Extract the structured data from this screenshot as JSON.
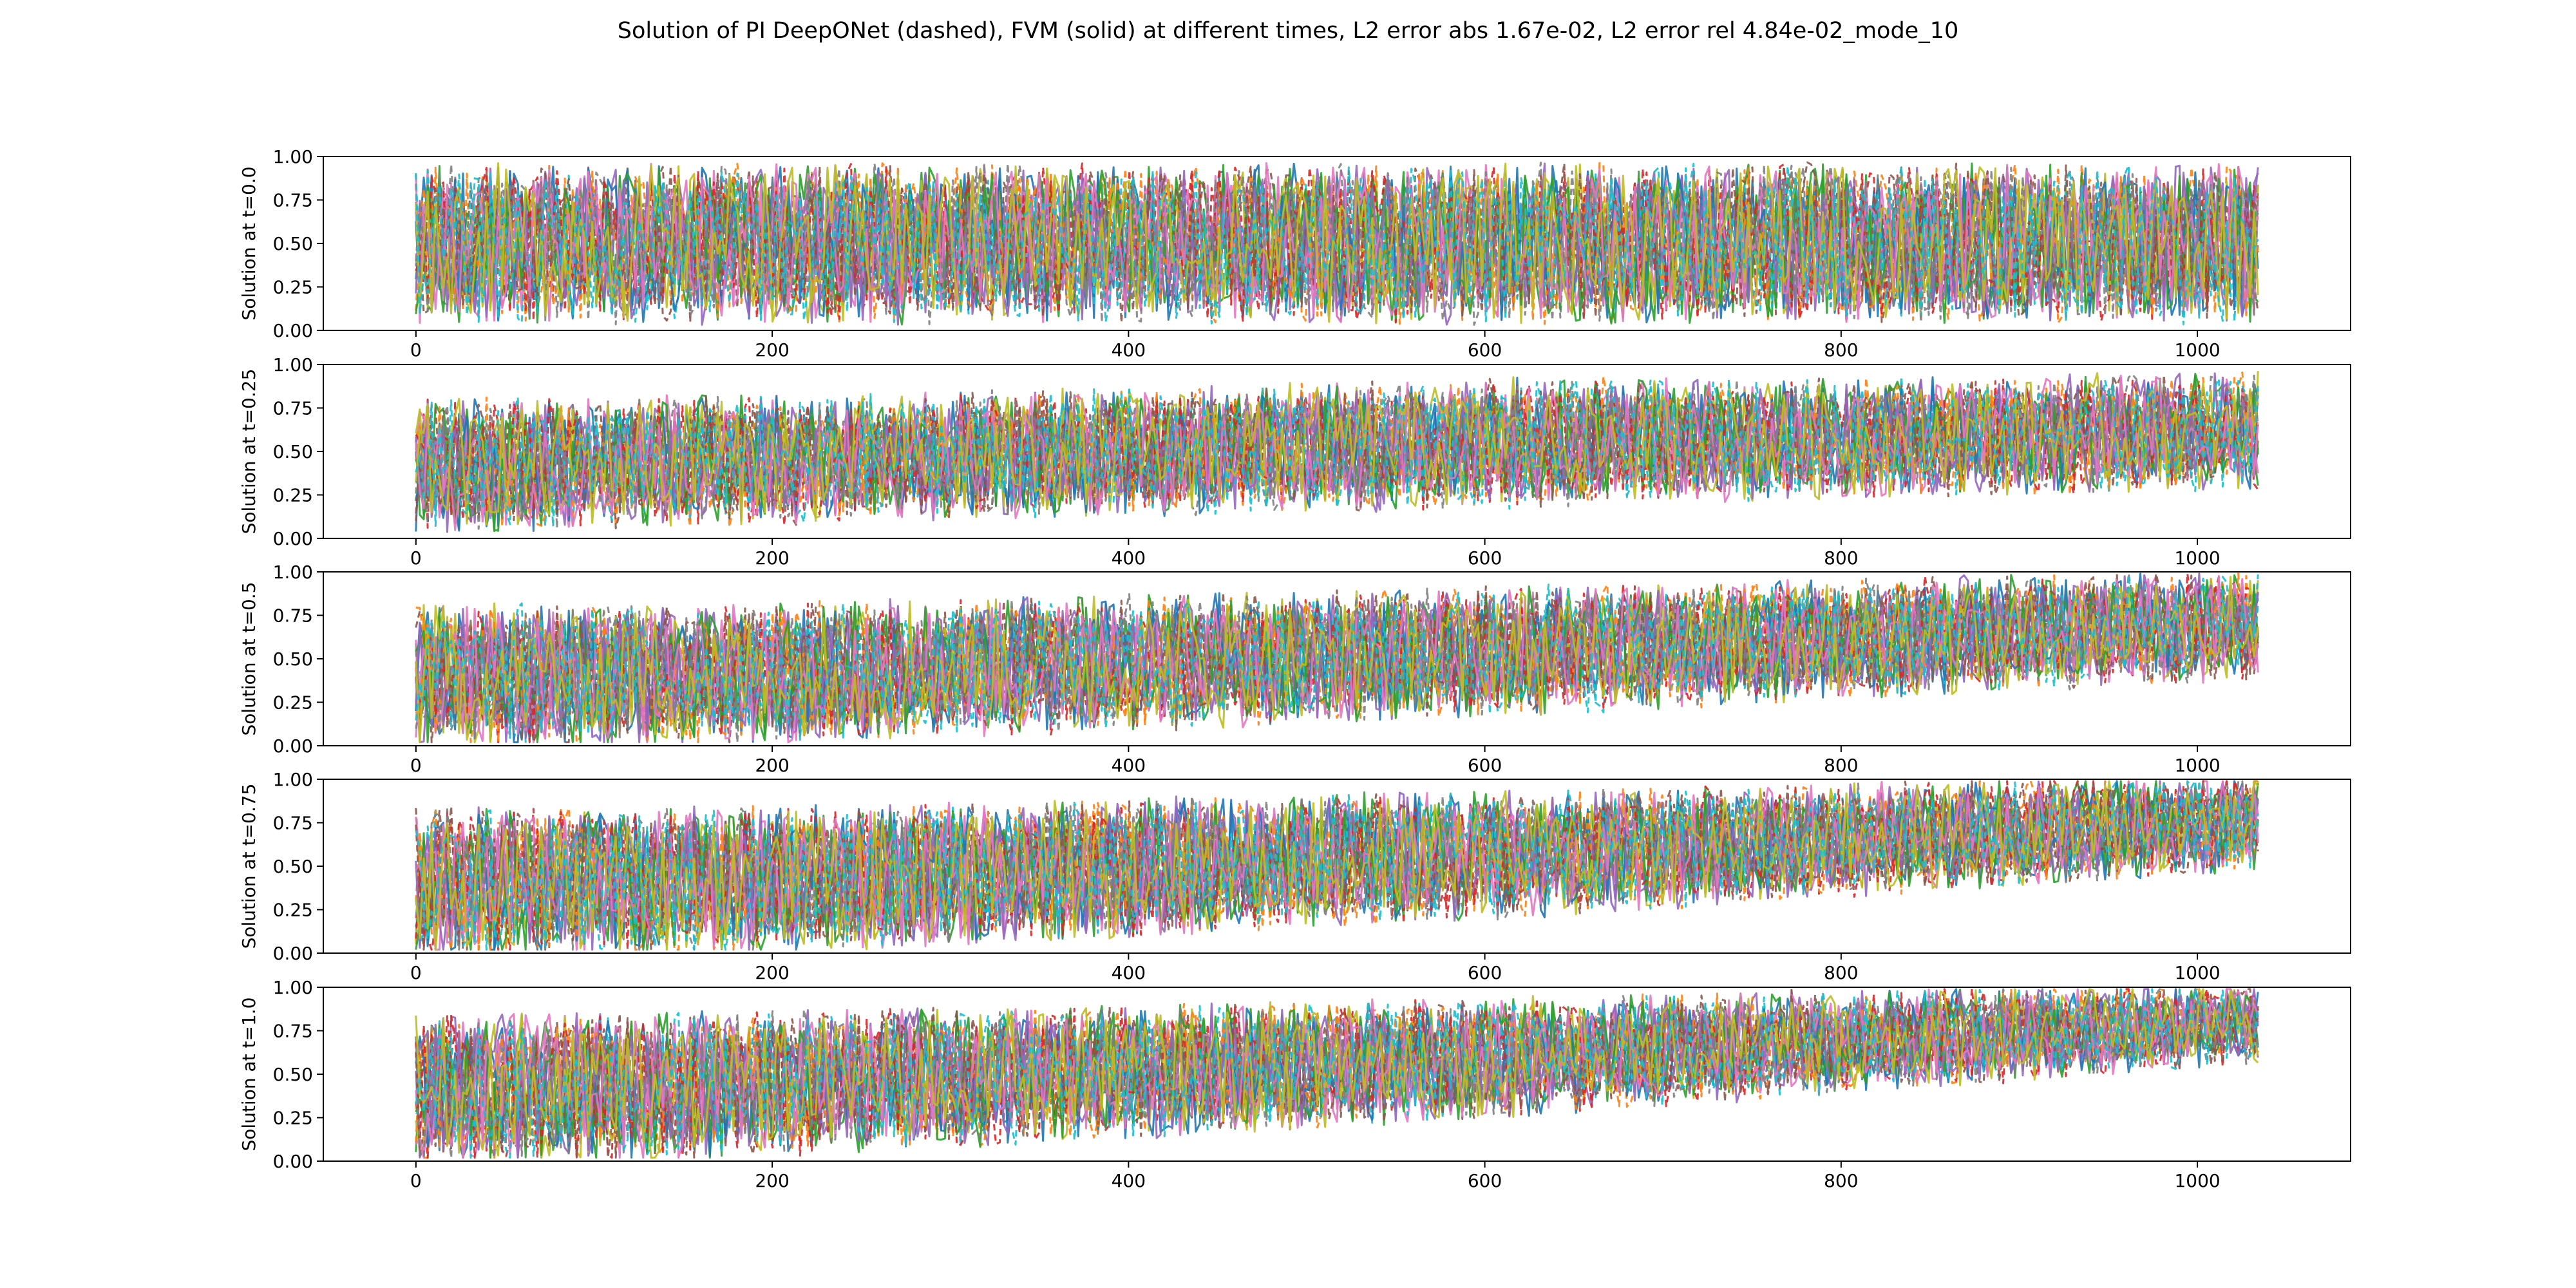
{
  "figure": {
    "title": "Solution of PI DeepONet (dashed), FVM (solid) at different times, L2 error abs 1.67e-02, L2 error rel 4.84e-02_mode_10"
  },
  "colors": {
    "palette": [
      "#1f77b4",
      "#ff7f0e",
      "#2ca02c",
      "#d62728",
      "#9467bd",
      "#8c564b",
      "#e377c2",
      "#7f7f7f",
      "#bcbd22",
      "#17becf"
    ],
    "axes_edge": "#000000",
    "background": "#ffffff"
  },
  "chart_data": [
    {
      "type": "line",
      "ylabel": "Solution at t=0.0",
      "xlim": [
        -52,
        1086
      ],
      "ylim": [
        0.0,
        1.0
      ],
      "xticks": [
        0,
        200,
        400,
        600,
        800,
        1000
      ],
      "xtick_labels": [
        "0",
        "200",
        "400",
        "600",
        "800",
        "1000"
      ],
      "yticks": [
        0.0,
        0.25,
        0.5,
        0.75,
        1.0
      ],
      "ytick_labels": [
        "0.00",
        "0.25",
        "0.50",
        "0.75",
        "1.00"
      ],
      "x_range": [
        0,
        1035
      ],
      "mean_trend": [
        0.5,
        0.5,
        0.5,
        0.5,
        0.5,
        0.5
      ],
      "spread_trend": [
        0.42,
        0.42,
        0.42,
        0.42,
        0.42,
        0.42
      ],
      "series_style": "solid (FVM) and dashed (PI DeepONet), cycling color palette"
    },
    {
      "type": "line",
      "ylabel": "Solution at t=0.25",
      "xlim": [
        -52,
        1086
      ],
      "ylim": [
        0.0,
        1.0
      ],
      "xticks": [
        0,
        200,
        400,
        600,
        800,
        1000
      ],
      "xtick_labels": [
        "0",
        "200",
        "400",
        "600",
        "800",
        "1000"
      ],
      "yticks": [
        0.0,
        0.25,
        0.5,
        0.75,
        1.0
      ],
      "ytick_labels": [
        "0.00",
        "0.25",
        "0.50",
        "0.75",
        "1.00"
      ],
      "x_range": [
        0,
        1035
      ],
      "mean_trend": [
        0.42,
        0.45,
        0.5,
        0.55,
        0.58,
        0.62
      ],
      "spread_trend": [
        0.35,
        0.33,
        0.33,
        0.33,
        0.3,
        0.3
      ],
      "series_style": "solid (FVM) and dashed (PI DeepONet), cycling color palette"
    },
    {
      "type": "line",
      "ylabel": "Solution at t=0.5",
      "xlim": [
        -52,
        1086
      ],
      "ylim": [
        0.0,
        1.0
      ],
      "xticks": [
        0,
        200,
        400,
        600,
        800,
        1000
      ],
      "xtick_labels": [
        "0",
        "200",
        "400",
        "600",
        "800",
        "1000"
      ],
      "yticks": [
        0.0,
        0.25,
        0.5,
        0.75,
        1.0
      ],
      "ytick_labels": [
        "0.00",
        "0.25",
        "0.50",
        "0.75",
        "1.00"
      ],
      "x_range": [
        0,
        1035
      ],
      "mean_trend": [
        0.4,
        0.42,
        0.48,
        0.55,
        0.62,
        0.7
      ],
      "spread_trend": [
        0.38,
        0.36,
        0.35,
        0.33,
        0.3,
        0.28
      ],
      "series_style": "solid (FVM) and dashed (PI DeepONet), cycling color palette"
    },
    {
      "type": "line",
      "ylabel": "Solution at t=0.75",
      "xlim": [
        -52,
        1086
      ],
      "ylim": [
        0.0,
        1.0
      ],
      "xticks": [
        0,
        200,
        400,
        600,
        800,
        1000
      ],
      "xtick_labels": [
        "0",
        "200",
        "400",
        "600",
        "800",
        "1000"
      ],
      "yticks": [
        0.0,
        0.25,
        0.5,
        0.75,
        1.0
      ],
      "ytick_labels": [
        "0.00",
        "0.25",
        "0.50",
        "0.75",
        "1.00"
      ],
      "x_range": [
        0,
        1035
      ],
      "mean_trend": [
        0.4,
        0.42,
        0.5,
        0.57,
        0.66,
        0.76
      ],
      "spread_trend": [
        0.4,
        0.38,
        0.36,
        0.33,
        0.28,
        0.24
      ],
      "series_style": "solid (FVM) and dashed (PI DeepONet), cycling color palette"
    },
    {
      "type": "line",
      "ylabel": "Solution at t=1.0",
      "xlim": [
        -52,
        1086
      ],
      "ylim": [
        0.0,
        1.0
      ],
      "xticks": [
        0,
        200,
        400,
        600,
        800,
        1000
      ],
      "xtick_labels": [
        "0",
        "200",
        "400",
        "600",
        "800",
        "1000"
      ],
      "yticks": [
        0.0,
        0.25,
        0.5,
        0.75,
        1.0
      ],
      "ytick_labels": [
        "0.00",
        "0.25",
        "0.50",
        "0.75",
        "1.00"
      ],
      "x_range": [
        0,
        1035
      ],
      "mean_trend": [
        0.4,
        0.45,
        0.52,
        0.6,
        0.7,
        0.8
      ],
      "spread_trend": [
        0.4,
        0.38,
        0.34,
        0.3,
        0.25,
        0.2
      ],
      "series_style": "solid (FVM) and dashed (PI DeepONet), cycling color palette"
    }
  ]
}
